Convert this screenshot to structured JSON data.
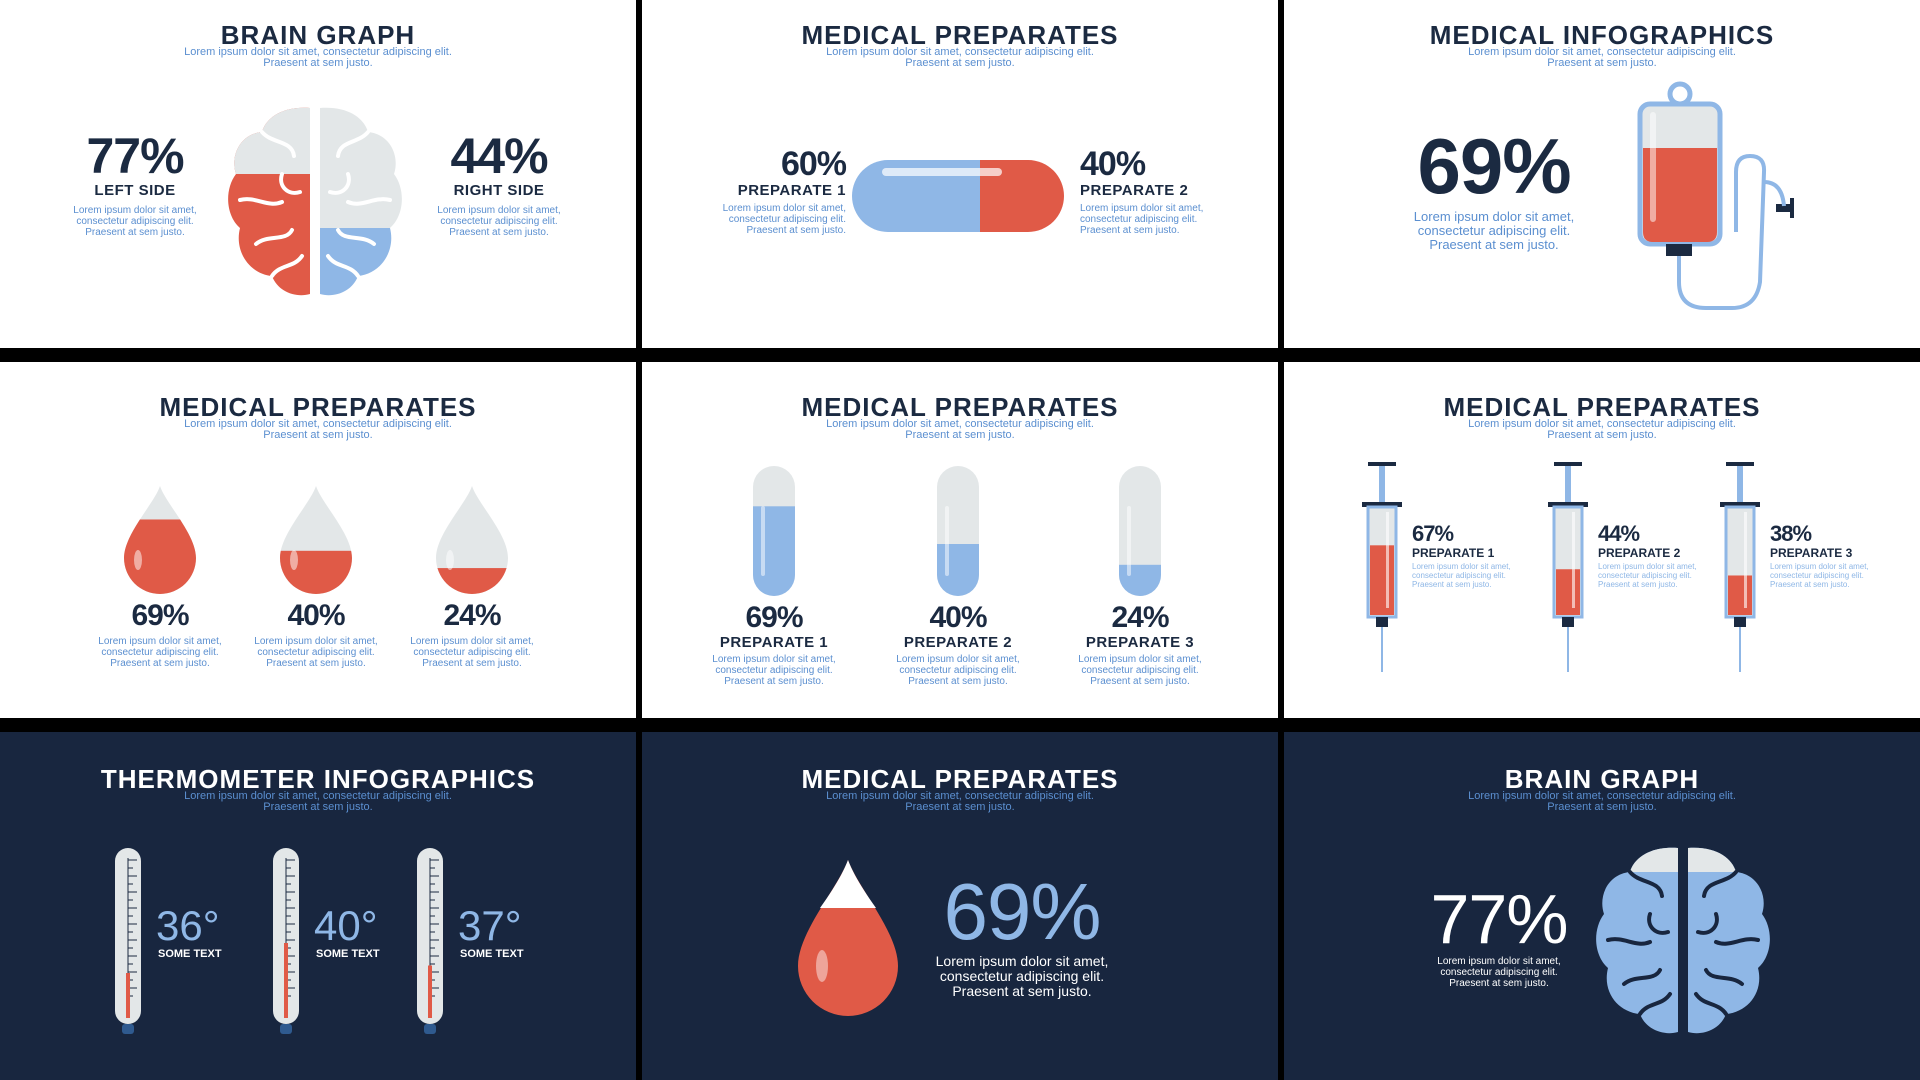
{
  "colors": {
    "navy": "#1b2a41",
    "dark_bg": "#18263f",
    "red": "#e05a47",
    "blue": "#8fb7e6",
    "light": "#e3e7e8",
    "link": "#5b8fd0"
  },
  "lorem": {
    "l1": "Lorem ipsum dolor sit amet, consectetur adipiscing elit.",
    "l2": "Praesent at sem justo.",
    "a": "Lorem ipsum dolor sit amet,",
    "b": "consectetur adipiscing elit.",
    "c": "Praesent at sem justo."
  },
  "p1": {
    "title": "BRAIN GRAPH",
    "left_value": "77%",
    "left_label": "LEFT SIDE",
    "right_value": "44%",
    "right_label": "RIGHT SIDE"
  },
  "p2": {
    "title": "MEDICAL PREPARATES",
    "v1": "60%",
    "l1": "PREPARATE 1",
    "v2": "40%",
    "l2": "PREPARATE 2"
  },
  "p3": {
    "title": "MEDICAL INFOGRAPHICS",
    "value": "69%"
  },
  "p4": {
    "title": "MEDICAL PREPARATES",
    "drops": [
      "69%",
      "40%",
      "24%"
    ]
  },
  "p5": {
    "title": "MEDICAL PREPARATES",
    "tubes": [
      {
        "value": "69%",
        "label": "PREPARATE 1"
      },
      {
        "value": "40%",
        "label": "PREPARATE 2"
      },
      {
        "value": "24%",
        "label": "PREPARATE 3"
      }
    ]
  },
  "p6": {
    "title": "MEDICAL PREPARATES",
    "syringes": [
      {
        "value": "67%",
        "label": "PREPARATE 1"
      },
      {
        "value": "44%",
        "label": "PREPARATE 2"
      },
      {
        "value": "38%",
        "label": "PREPARATE 3"
      }
    ]
  },
  "p7": {
    "title": "THERMOMETER INFOGRAPHICS",
    "thermos": [
      {
        "value": "36°",
        "label": "SOME TEXT"
      },
      {
        "value": "40°",
        "label": "SOME TEXT"
      },
      {
        "value": "37°",
        "label": "SOME TEXT"
      }
    ]
  },
  "p8": {
    "title": "MEDICAL PREPARATES",
    "value": "69%"
  },
  "p9": {
    "title": "BRAIN GRAPH",
    "value": "77%"
  }
}
